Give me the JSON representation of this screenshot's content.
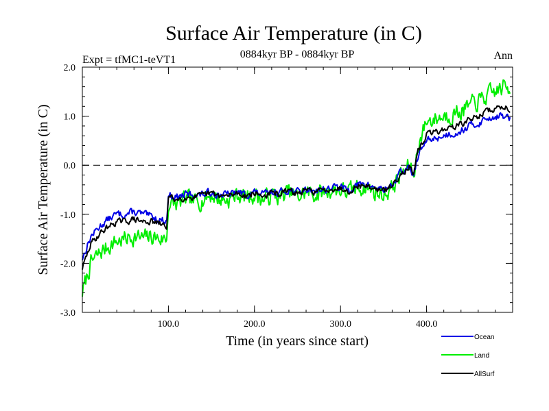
{
  "chart_data": {
    "type": "line",
    "title": "Surface Air Temperature (in C)",
    "subtitle": "0884kyr BP - 0884kyr BP",
    "experiment_label": "Expt = tfMC1-teVT1",
    "season_label": "Ann",
    "xlabel": "Time (in years since start)",
    "ylabel": "Surface Air Temperature (in C)",
    "xlim": [
      0,
      500
    ],
    "ylim": [
      -3.0,
      2.0
    ],
    "x_ticks": [
      100,
      200,
      300,
      400
    ],
    "x_tick_labels": [
      "100.0",
      "200.0",
      "300.0",
      "400.0"
    ],
    "y_ticks": [
      -3.0,
      -2.0,
      -1.0,
      0.0,
      1.0,
      2.0
    ],
    "y_tick_labels": [
      "-3.0",
      "-2.0",
      "-1.0",
      "0.0",
      "1.0",
      "2.0"
    ],
    "reference_line": 0.0,
    "legend_position": "bottom-right, outside plot",
    "series": [
      {
        "name": "Ocean",
        "color": "#0000e6",
        "x": [
          0,
          10,
          20,
          30,
          40,
          50,
          60,
          70,
          80,
          90,
          98,
          100,
          110,
          120,
          130,
          140,
          150,
          160,
          170,
          180,
          190,
          200,
          210,
          220,
          230,
          240,
          250,
          260,
          270,
          280,
          290,
          300,
          310,
          320,
          330,
          340,
          350,
          360,
          370,
          380,
          385,
          390,
          400,
          410,
          420,
          430,
          440,
          450,
          460,
          470,
          480,
          490,
          497
        ],
        "values": [
          -1.9,
          -1.45,
          -1.25,
          -1.1,
          -1.0,
          -1.0,
          -0.95,
          -1.0,
          -1.05,
          -1.1,
          -1.15,
          -0.6,
          -0.65,
          -0.6,
          -0.6,
          -0.6,
          -0.55,
          -0.6,
          -0.6,
          -0.55,
          -0.6,
          -0.55,
          -0.6,
          -0.55,
          -0.55,
          -0.5,
          -0.55,
          -0.5,
          -0.5,
          -0.5,
          -0.45,
          -0.45,
          -0.5,
          -0.4,
          -0.4,
          -0.45,
          -0.5,
          -0.4,
          -0.15,
          -0.05,
          -0.2,
          0.2,
          0.5,
          0.55,
          0.6,
          0.65,
          0.7,
          0.8,
          0.85,
          0.95,
          1.0,
          1.0,
          0.95
        ]
      },
      {
        "name": "Land",
        "color": "#00ee00",
        "x": [
          0,
          10,
          20,
          30,
          40,
          50,
          60,
          70,
          80,
          90,
          98,
          100,
          110,
          120,
          130,
          140,
          150,
          160,
          170,
          180,
          190,
          200,
          210,
          220,
          230,
          240,
          250,
          260,
          270,
          280,
          290,
          300,
          310,
          320,
          330,
          340,
          350,
          360,
          370,
          380,
          385,
          390,
          400,
          410,
          420,
          430,
          440,
          450,
          460,
          470,
          480,
          490,
          497
        ],
        "values": [
          -2.6,
          -2.0,
          -1.8,
          -1.65,
          -1.55,
          -1.5,
          -1.45,
          -1.5,
          -1.45,
          -1.5,
          -1.5,
          -0.8,
          -0.8,
          -0.7,
          -0.75,
          -0.7,
          -0.6,
          -0.7,
          -0.7,
          -0.6,
          -0.65,
          -0.6,
          -0.7,
          -0.6,
          -0.65,
          -0.55,
          -0.65,
          -0.55,
          -0.6,
          -0.55,
          -0.5,
          -0.5,
          -0.55,
          -0.45,
          -0.45,
          -0.55,
          -0.6,
          -0.45,
          -0.2,
          0.0,
          -0.25,
          0.4,
          0.9,
          0.95,
          1.0,
          1.05,
          1.1,
          1.2,
          1.3,
          1.4,
          1.5,
          1.6,
          1.55
        ]
      },
      {
        "name": "AllSurf",
        "color": "#000000",
        "x": [
          0,
          10,
          20,
          30,
          40,
          50,
          60,
          70,
          80,
          90,
          98,
          100,
          110,
          120,
          130,
          140,
          150,
          160,
          170,
          180,
          190,
          200,
          210,
          220,
          230,
          240,
          250,
          260,
          270,
          280,
          290,
          300,
          310,
          320,
          330,
          340,
          350,
          360,
          370,
          380,
          385,
          390,
          400,
          410,
          420,
          430,
          440,
          450,
          460,
          470,
          480,
          490,
          497
        ],
        "values": [
          -2.1,
          -1.6,
          -1.4,
          -1.25,
          -1.15,
          -1.15,
          -1.1,
          -1.15,
          -1.15,
          -1.2,
          -1.25,
          -0.65,
          -0.7,
          -0.65,
          -0.65,
          -0.62,
          -0.57,
          -0.63,
          -0.63,
          -0.57,
          -0.62,
          -0.57,
          -0.63,
          -0.57,
          -0.58,
          -0.52,
          -0.58,
          -0.52,
          -0.53,
          -0.52,
          -0.47,
          -0.47,
          -0.52,
          -0.42,
          -0.42,
          -0.48,
          -0.53,
          -0.42,
          -0.17,
          -0.03,
          -0.22,
          0.27,
          0.63,
          0.68,
          0.73,
          0.78,
          0.83,
          0.93,
          1.0,
          1.1,
          1.15,
          1.2,
          1.15
        ]
      }
    ]
  }
}
